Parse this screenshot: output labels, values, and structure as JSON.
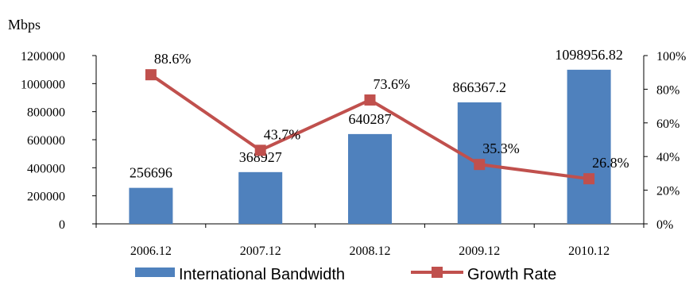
{
  "chart_data": {
    "type": "bar+line",
    "title": "",
    "unit_label": "Mbps",
    "categories": [
      "2006.12",
      "2007.12",
      "2008.12",
      "2009.12",
      "2010.12"
    ],
    "series": [
      {
        "name": "International Bandwidth",
        "type": "bar",
        "axis": "left",
        "color": "#4F81BD",
        "values": [
          256696,
          368927,
          640287,
          866367.2,
          1098956.82
        ],
        "labels": [
          "256696",
          "368927",
          "640287",
          "866367.2",
          "1098956.82"
        ]
      },
      {
        "name": "Growth Rate",
        "type": "line",
        "axis": "right",
        "color": "#C0504D",
        "values": [
          88.6,
          43.7,
          73.6,
          35.3,
          26.8
        ],
        "labels": [
          "88.6%",
          "43.7%",
          "73.6%",
          "35.3%",
          "26.8%"
        ]
      }
    ],
    "y_left": {
      "min": 0,
      "max": 1200000,
      "ticks": [
        "0",
        "200000",
        "400000",
        "600000",
        "800000",
        "1000000",
        "1200000"
      ]
    },
    "y_right": {
      "min": 0,
      "max": 100,
      "ticks": [
        "0%",
        "20%",
        "40%",
        "60%",
        "80%",
        "100%"
      ]
    },
    "grid": false,
    "legend": "bottom"
  }
}
